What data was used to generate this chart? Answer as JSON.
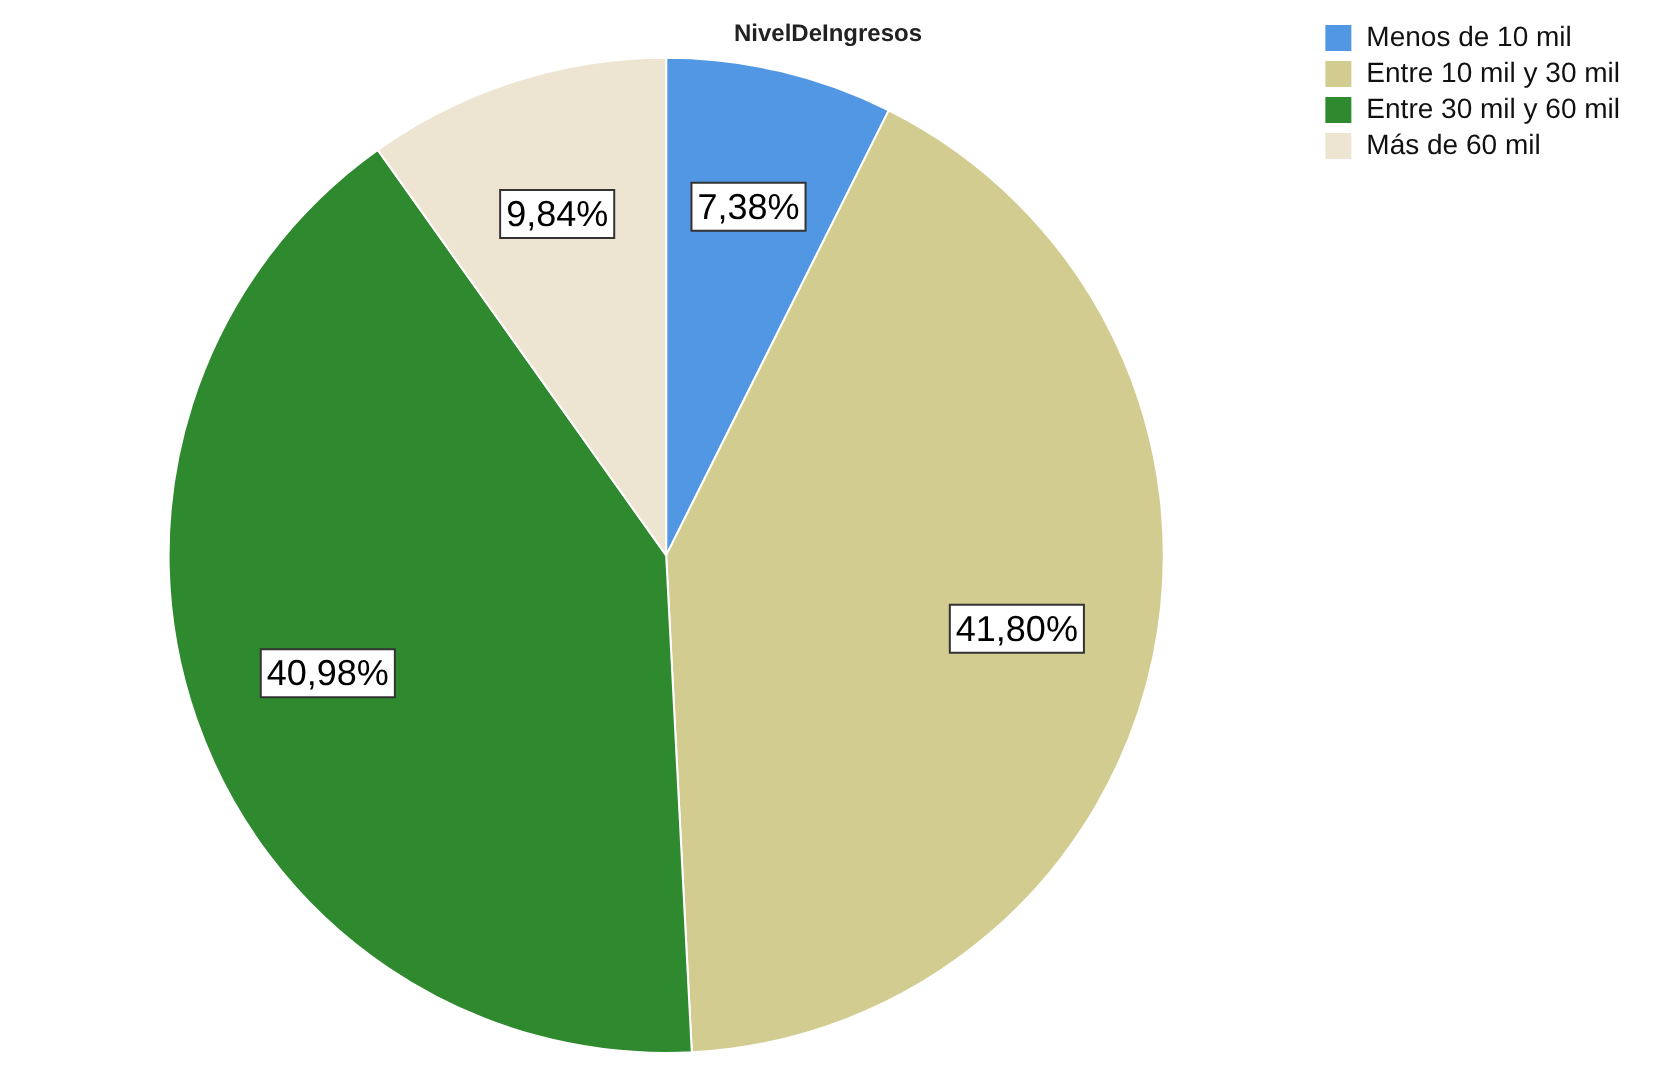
{
  "chart_data": {
    "type": "pie",
    "title": "NivelDeIngresos",
    "categories": [
      "Menos de 10 mil",
      "Entre 10 mil y 30 mil",
      "Entre 30 mil y 60 mil",
      "Más de 60 mil"
    ],
    "values": [
      7.38,
      41.8,
      40.98,
      9.84
    ],
    "colors": [
      "#5197e3",
      "#d3cc91",
      "#2f8a2f",
      "#ede5d1"
    ],
    "value_labels": [
      "7,38%",
      "41,80%",
      "40,98%",
      "9,84%"
    ],
    "legend": "top right"
  }
}
